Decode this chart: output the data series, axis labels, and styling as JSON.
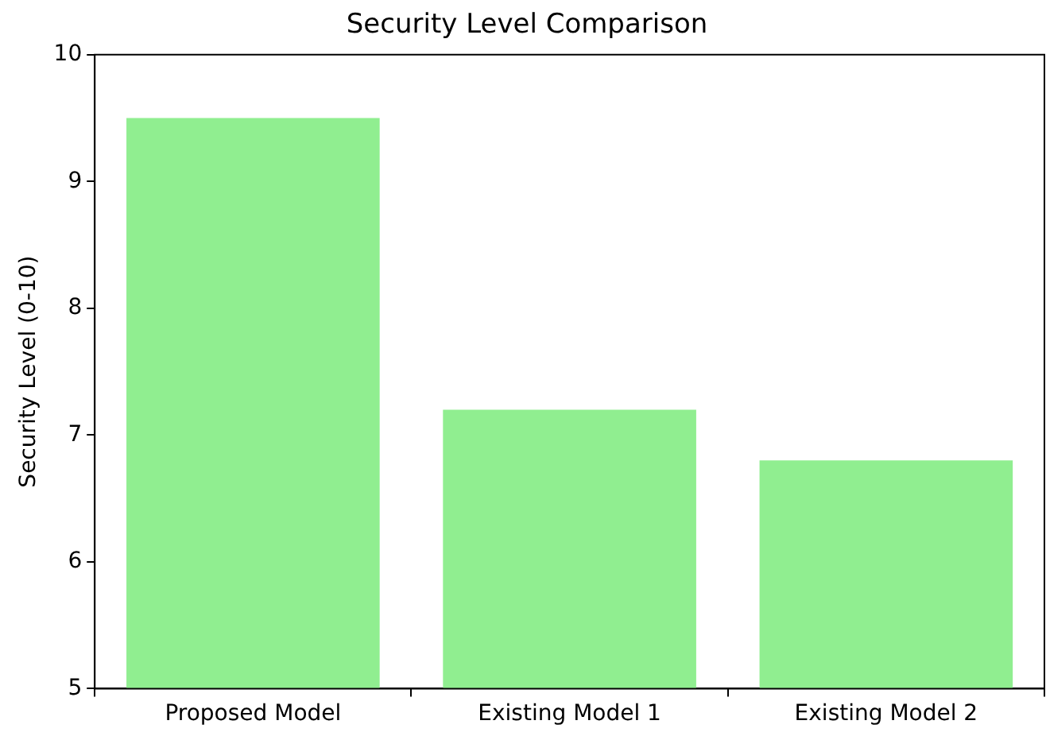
{
  "chart_data": {
    "type": "bar",
    "title": "Security Level Comparison",
    "ylabel": "Security Level (0-10)",
    "categories": [
      "Proposed Model",
      "Existing Model 1",
      "Existing Model 2"
    ],
    "values": [
      9.5,
      7.2,
      6.8
    ],
    "color": "#90ee90",
    "ylim": [
      5,
      10
    ],
    "yticks": [
      5,
      6,
      7,
      8,
      9,
      10
    ],
    "grid": false,
    "legend": false
  }
}
